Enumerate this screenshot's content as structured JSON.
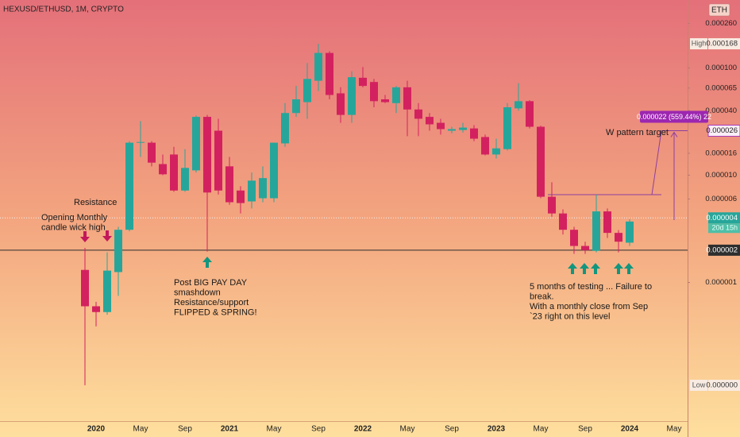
{
  "chart_data": {
    "type": "candlestick",
    "title": "HEXUSD/ETHUSD, 1M, CRYPTO",
    "currency": "ETH",
    "log_scale": true,
    "grid": false,
    "up_color": "#26a69a",
    "down_color": "#d3215f",
    "categories": [
      null,
      "2020",
      null,
      null,
      null,
      "May",
      null,
      null,
      null,
      "Sep",
      null,
      null,
      null,
      "2021",
      null,
      null,
      null,
      "May",
      null,
      null,
      null,
      "Sep",
      null,
      null,
      null,
      "2022",
      null,
      null,
      null,
      "May",
      null,
      null,
      null,
      "Sep",
      null,
      null,
      null,
      "2023",
      null,
      null,
      null,
      "May",
      null,
      null,
      null,
      "Sep",
      null,
      null,
      null,
      "2024",
      null,
      null,
      null,
      "May"
    ],
    "open": [
      1.31e-06,
      6e-07,
      5.3e-07,
      1.25e-06,
      3.1e-06,
      2.01e-05,
      2.01e-05,
      1.27e-05,
      1.56e-05,
      7.2e-06,
      1.11e-05,
      3.5e-05,
      2.6e-05,
      1.21e-05,
      7.2e-06,
      5.7e-06,
      6.1e-06,
      6.1e-06,
      1.98e-05,
      3.8e-05,
      4.8e-05,
      7.6e-05,
      0.000138,
      5.8e-05,
      3.65e-05,
      8.1e-05,
      7.4e-05,
      5.1e-05,
      4.7e-05,
      6.6e-05,
      4.1e-05,
      3.5e-05,
      3.08e-05,
      2.6e-05,
      2.64e-05,
      2.73e-05,
      2.27e-05,
      1.56e-05,
      1.75e-05,
      4.2e-05,
      4.9e-05,
      2.83e-05,
      6.3e-06,
      4.4e-06,
      3.1e-06,
      2.19e-06,
      1.97e-06,
      4.6e-06,
      2.9e-06,
      2.35e-06,
      null,
      null,
      null,
      null
    ],
    "high": [
      2.1e-06,
      6.6e-07,
      1.91e-06,
      3.3e-06,
      2.08e-05,
      3.2e-05,
      2.08e-05,
      1.56e-05,
      1.84e-05,
      1.75e-05,
      3.6e-05,
      3.65e-05,
      3.36e-05,
      1.48e-05,
      7.9e-06,
      1.06e-05,
      1.21e-05,
      2.01e-05,
      4.7e-05,
      6.8e-05,
      0.000111,
      0.000168,
      0.000143,
      6.6e-05,
      9.3e-05,
      0.000102,
      7.9e-05,
      5.6e-05,
      6.8e-05,
      7.6e-05,
      4.7e-05,
      3.8e-05,
      3.36e-05,
      2.83e-05,
      3.08e-05,
      2.93e-05,
      2.39e-05,
      2.19e-05,
      4.7e-05,
      7.2e-05,
      5e-05,
      2.9e-05,
      8.6e-06,
      4.8e-06,
      3.3e-06,
      2.4e-06,
      6.6e-06,
      4.9e-06,
      3.08e-06,
      3.9e-06,
      null,
      null,
      null,
      null
    ],
    "low": [
      1.1e-07,
      3.9e-07,
      5e-07,
      7.5e-07,
      3e-06,
      1.48e-05,
      1.21e-05,
      1e-05,
      7e-06,
      7e-06,
      1.06e-05,
      1.94e-06,
      6.6e-06,
      5.3e-06,
      4.4e-06,
      4.9e-06,
      5.6e-06,
      5.6e-06,
      1.84e-05,
      3.5e-05,
      3.36e-05,
      6.1e-05,
      5.1e-05,
      3.08e-05,
      3.08e-05,
      6.6e-05,
      4.3e-05,
      4.7e-05,
      3.8e-05,
      2.31e-05,
      2.31e-05,
      2.6e-05,
      2.39e-05,
      2.46e-05,
      2.5e-05,
      2.08e-05,
      1.53e-05,
      1.43e-05,
      1.7e-05,
      4e-05,
      2.73e-05,
      6.1e-06,
      4.1e-06,
      2.8e-06,
      1.85e-06,
      1.85e-06,
      1.91e-06,
      2.6e-06,
      1.91e-06,
      2.19e-06,
      null,
      null,
      null,
      null
    ],
    "close": [
      6e-07,
      5.3e-07,
      1.29e-06,
      3.1e-06,
      2.01e-05,
      2.04e-05,
      1.31e-05,
      1.02e-05,
      7.2e-06,
      1.17e-05,
      3.5e-05,
      6.9e-06,
      7.2e-06,
      5.6e-06,
      5.5e-06,
      8.9e-06,
      9.4e-06,
      2.01e-05,
      3.8e-05,
      5.1e-05,
      7.9e-05,
      0.000138,
      5.6e-05,
      3.65e-05,
      8.2e-05,
      6.8e-05,
      4.9e-05,
      4.8e-05,
      6.6e-05,
      4.1e-05,
      3.36e-05,
      2.98e-05,
      2.69e-05,
      2.69e-05,
      2.78e-05,
      2.19e-05,
      1.56e-05,
      1.78e-05,
      4.3e-05,
      4.9e-05,
      2.83e-05,
      6.3e-06,
      4.4e-06,
      3.1e-06,
      2.19e-06,
      2e-06,
      4.6e-06,
      2.9e-06,
      2.4e-06,
      3.7e-06,
      null,
      null,
      null,
      null
    ],
    "ylim": [
      5.1e-08,
      0.00043
    ],
    "yticks": [
      {
        "value": 0.00026,
        "label": "0.000260"
      },
      {
        "value": 0.0001,
        "label": "0.000100"
      },
      {
        "value": 6.5e-05,
        "label": "0.000065"
      },
      {
        "value": 4e-05,
        "label": "0.000040"
      },
      {
        "value": 1.6e-05,
        "label": "0.000016"
      },
      {
        "value": 1e-05,
        "label": "0.000010"
      },
      {
        "value": 6e-06,
        "label": "0.000006"
      },
      {
        "value": 1e-06,
        "label": "0.000001"
      }
    ],
    "price_tags": [
      {
        "name": "High",
        "value": 0.000168,
        "label": "0.000168"
      },
      {
        "value": 2.6e-05,
        "label": "0.000026",
        "color": "#a93bb8"
      },
      {
        "value": 4e-06,
        "label": "0.000004",
        "countdown": "20d 15h",
        "color": "#26a69a",
        "line_style": "dotted"
      },
      {
        "value": 2e-06,
        "label": "0.000002",
        "color": "#2e2e2e",
        "line_style": "solid"
      },
      {
        "name": "Low",
        "value": 1.1e-07,
        "label": "0.000000"
      }
    ],
    "measure_label": "0.000022 (559.44%) 22",
    "annotations": [
      [
        "Resistance"
      ],
      [
        "Opening Monthly",
        "candle wick high"
      ],
      [
        "Post BIG PAY DAY",
        "smashdown",
        "Resistance/support",
        "FLIPPED & SPRING!"
      ],
      [
        "5 months of testing ... Failure to",
        "break.",
        "With a monthly close from Sep",
        "`23 right on this level"
      ],
      [
        "W pattern target"
      ]
    ]
  }
}
